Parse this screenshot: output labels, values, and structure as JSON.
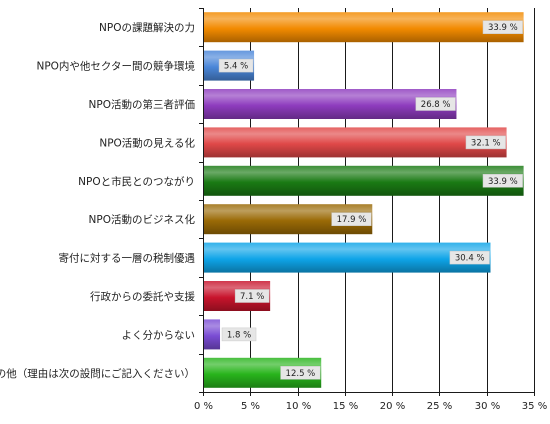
{
  "chart_data": {
    "type": "bar",
    "orientation": "horizontal",
    "categories": [
      "NPOの課題解決の力",
      "NPO内や他セクター間の競争環境",
      "NPO活動の第三者評価",
      "NPO活動の見える化",
      "NPOと市民とのつながり",
      "NPO活動のビジネス化",
      "寄付に対する一層の税制優遇",
      "行政からの委託や支援",
      "よく分からない",
      "その他（理由は次の設問にご記入ください）"
    ],
    "values": [
      33.9,
      5.4,
      26.8,
      32.1,
      33.9,
      17.9,
      30.4,
      7.1,
      1.8,
      12.5
    ],
    "value_labels": [
      "33.9 %",
      "5.4 %",
      "26.8 %",
      "32.1 %",
      "33.9 %",
      "17.9 %",
      "30.4 %",
      "7.1 %",
      "1.8 %",
      "12.5 %"
    ],
    "xlim": [
      0,
      35
    ],
    "xticks": [
      "0 %",
      "5 %",
      "10 %",
      "15 %",
      "20 %",
      "25 %",
      "30 %",
      "35 %"
    ],
    "grid": true,
    "colors": [
      "#f28a00",
      "#4a86d8",
      "#8e3cbe",
      "#e04848",
      "#1a7a14",
      "#9a6a06",
      "#0ea4e8",
      "#c8142c",
      "#7a4cd4",
      "#28b41c"
    ]
  }
}
